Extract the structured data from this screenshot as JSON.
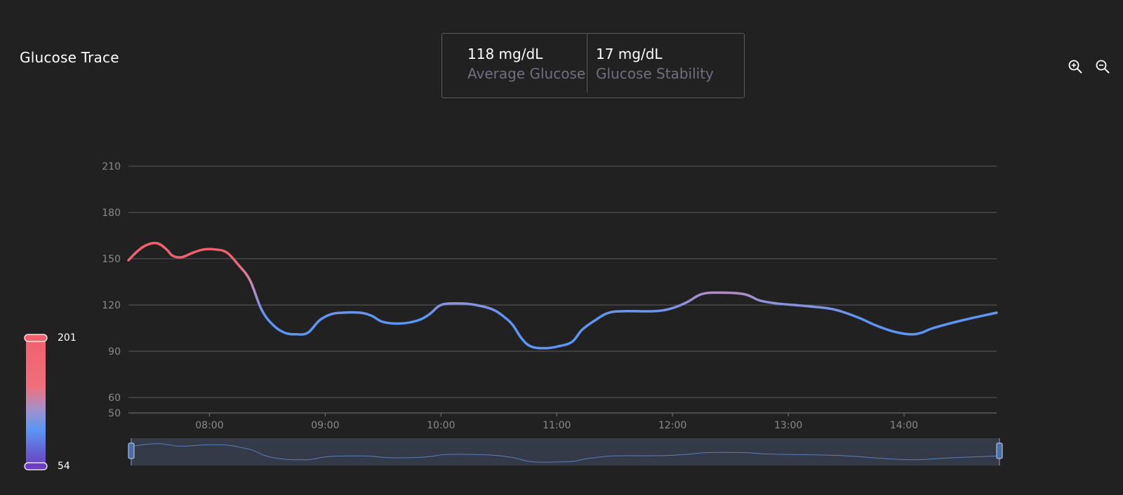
{
  "title": "Glucose Trace",
  "stats": [
    {
      "value": "118 mg/dL",
      "label": "Average Glucose"
    },
    {
      "value": "17 mg/dL",
      "label": "Glucose Stability"
    }
  ],
  "controls": {
    "zoom_in_icon": "zoom-in-icon",
    "zoom_out_icon": "zoom-out-icon"
  },
  "legend": {
    "max_label": "201",
    "min_label": "54",
    "colors": {
      "high": "#f0616d",
      "mid": "#5b96f5",
      "low": "#6a3fc0"
    }
  },
  "colors": {
    "high": "#f0616d",
    "mid": "#5b96f5",
    "grid": "#5c5c5c",
    "axis_text": "#8a8a8a",
    "navigator_bg": "#343a48"
  },
  "chart_data": {
    "type": "line",
    "title": "Glucose Trace",
    "xlabel": "",
    "ylabel": "",
    "unit": "mg/dL",
    "y_ticks": [
      50,
      60,
      90,
      120,
      150,
      180,
      210
    ],
    "ylim": [
      50,
      210
    ],
    "x_ticks": [
      "08:00",
      "09:00",
      "10:00",
      "11:00",
      "12:00",
      "13:00",
      "14:00"
    ],
    "x_tick_hours": [
      8,
      9,
      10,
      11,
      12,
      13,
      14
    ],
    "xlim_hours": [
      7.3,
      14.8
    ],
    "grid": true,
    "series": [
      {
        "name": "Glucose",
        "points": [
          [
            7.3,
            149
          ],
          [
            7.38,
            155
          ],
          [
            7.46,
            159
          ],
          [
            7.55,
            160
          ],
          [
            7.63,
            156
          ],
          [
            7.68,
            152
          ],
          [
            7.76,
            151
          ],
          [
            7.86,
            154
          ],
          [
            7.95,
            156
          ],
          [
            8.05,
            156
          ],
          [
            8.15,
            154
          ],
          [
            8.25,
            146
          ],
          [
            8.35,
            136
          ],
          [
            8.45,
            117
          ],
          [
            8.55,
            107
          ],
          [
            8.65,
            102
          ],
          [
            8.75,
            101
          ],
          [
            8.85,
            102
          ],
          [
            8.95,
            110
          ],
          [
            9.05,
            114
          ],
          [
            9.15,
            115
          ],
          [
            9.3,
            115
          ],
          [
            9.4,
            113
          ],
          [
            9.5,
            109
          ],
          [
            9.65,
            108
          ],
          [
            9.8,
            110
          ],
          [
            9.9,
            114
          ],
          [
            10.0,
            120
          ],
          [
            10.15,
            121
          ],
          [
            10.3,
            120
          ],
          [
            10.45,
            117
          ],
          [
            10.55,
            112
          ],
          [
            10.62,
            107
          ],
          [
            10.7,
            98
          ],
          [
            10.78,
            93
          ],
          [
            10.9,
            92
          ],
          [
            11.0,
            93
          ],
          [
            11.13,
            96
          ],
          [
            11.22,
            104
          ],
          [
            11.33,
            110
          ],
          [
            11.45,
            115
          ],
          [
            11.6,
            116
          ],
          [
            11.85,
            116
          ],
          [
            12.0,
            118
          ],
          [
            12.13,
            122
          ],
          [
            12.25,
            127
          ],
          [
            12.4,
            128
          ],
          [
            12.62,
            127
          ],
          [
            12.75,
            123
          ],
          [
            12.9,
            121
          ],
          [
            13.05,
            120
          ],
          [
            13.2,
            119
          ],
          [
            13.4,
            117
          ],
          [
            13.6,
            112
          ],
          [
            13.75,
            107
          ],
          [
            13.9,
            103
          ],
          [
            14.05,
            101
          ],
          [
            14.15,
            102
          ],
          [
            14.25,
            105
          ],
          [
            14.5,
            110
          ],
          [
            14.8,
            115
          ]
        ]
      }
    ],
    "color_scale": {
      "min": 54,
      "max": 201
    }
  }
}
